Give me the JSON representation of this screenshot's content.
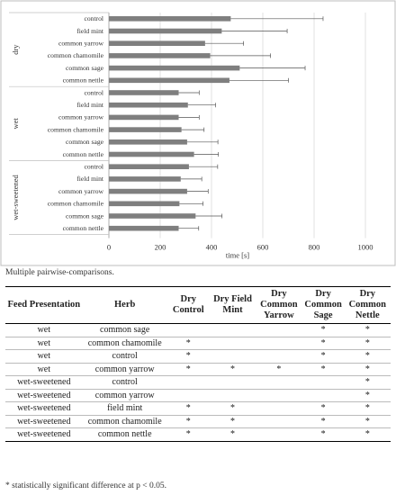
{
  "chart_data": {
    "type": "bar",
    "orientation": "horizontal",
    "x_axis_label": "time [s]",
    "x_ticks": [
      0,
      200,
      400,
      600,
      800,
      1000
    ],
    "xlim": [
      0,
      1000
    ],
    "grid": "vertical",
    "groups": [
      {
        "name": "dry",
        "categories": [
          "control",
          "field mint",
          "common yarrow",
          "common chamomile",
          "common sage",
          "common nettle"
        ],
        "values": [
          475,
          440,
          375,
          395,
          510,
          470
        ],
        "errors": [
          360,
          255,
          150,
          235,
          255,
          230
        ]
      },
      {
        "name": "wet",
        "categories": [
          "control",
          "field mint",
          "common yarrow",
          "common chamomile",
          "common sage",
          "common nettle"
        ],
        "values": [
          272,
          308,
          272,
          283,
          305,
          332
        ],
        "errors": [
          80,
          108,
          80,
          88,
          120,
          95
        ]
      },
      {
        "name": "wet-sweetened",
        "categories": [
          "control",
          "field mint",
          "common yarrow",
          "common chamomile",
          "common sage",
          "common nettle"
        ],
        "values": [
          312,
          280,
          305,
          275,
          338,
          272
        ],
        "errors": [
          112,
          82,
          82,
          92,
          103,
          78
        ]
      }
    ]
  },
  "caption": "Multiple pairwise-comparisons.",
  "table": {
    "headers": [
      "Feed Presentation",
      "Herb",
      "Dry Control",
      "Dry Field Mint",
      "Dry Common Yarrow",
      "Dry Common Sage",
      "Dry Common Nettle"
    ],
    "rows": [
      [
        "wet",
        "common sage",
        "",
        "",
        "",
        "*",
        "*"
      ],
      [
        "wet",
        "common chamomile",
        "*",
        "",
        "",
        "*",
        "*"
      ],
      [
        "wet",
        "control",
        "*",
        "",
        "",
        "*",
        "*"
      ],
      [
        "wet",
        "common yarrow",
        "*",
        "*",
        "*",
        "*",
        "*"
      ],
      [
        "wet-sweetened",
        "control",
        "",
        "",
        "",
        "",
        "*"
      ],
      [
        "wet-sweetened",
        "common yarrow",
        "",
        "",
        "",
        "",
        "*"
      ],
      [
        "wet-sweetened",
        "field mint",
        "*",
        "*",
        "",
        "*",
        "*"
      ],
      [
        "wet-sweetened",
        "common chamomile",
        "*",
        "*",
        "",
        "*",
        "*"
      ],
      [
        "wet-sweetened",
        "common nettle",
        "*",
        "*",
        "",
        "*",
        "*"
      ]
    ]
  },
  "footnote": "* statistically significant difference at p < 0.05."
}
